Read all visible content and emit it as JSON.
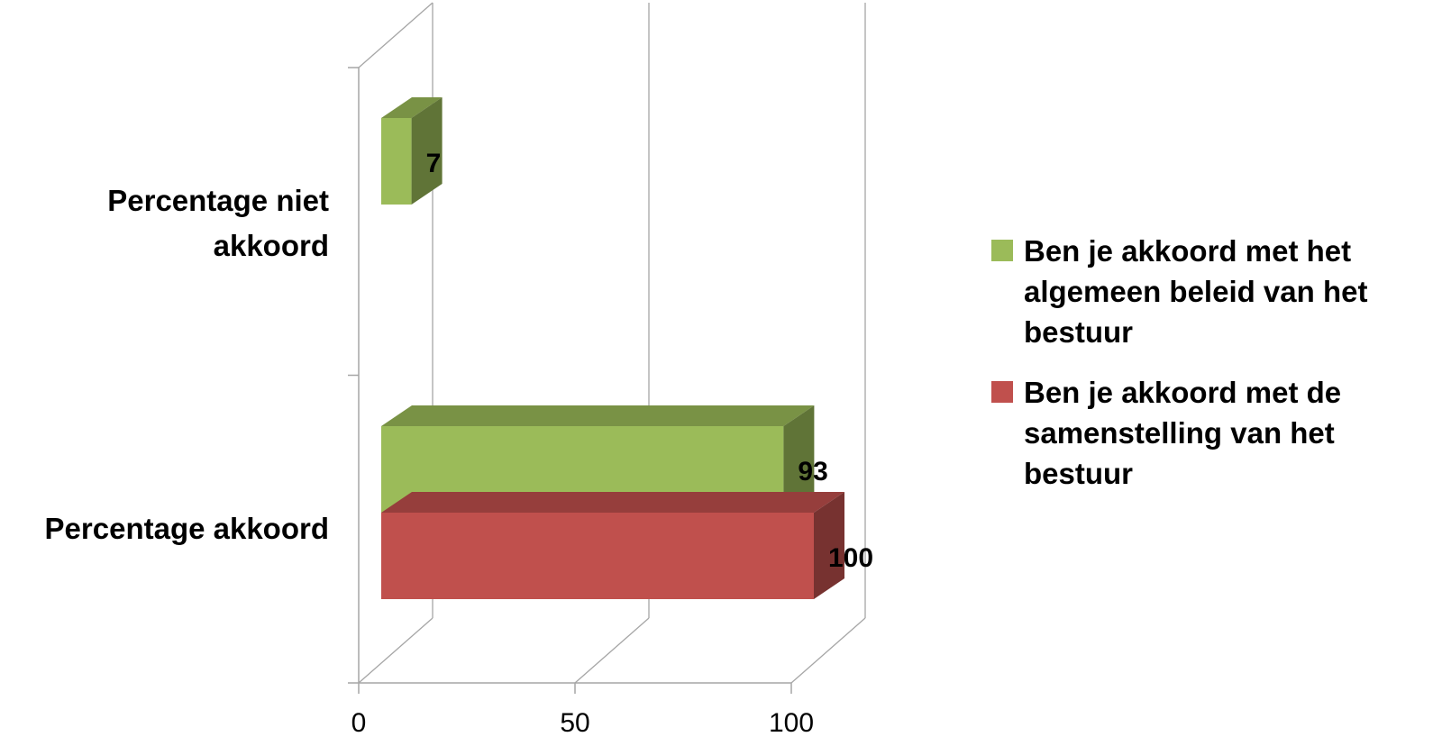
{
  "chart_data": {
    "type": "bar",
    "orientation": "horizontal",
    "three_d": true,
    "categories": [
      "Percentage niet akkoord",
      "Percentage akkoord"
    ],
    "series": [
      {
        "name": "Ben je akkoord met het algemeen beleid van het bestuur",
        "color": "#9BBB59",
        "values": [
          7,
          93
        ]
      },
      {
        "name": "Ben je akkoord met de samenstelling van het bestuur",
        "color": "#C0504D",
        "values": [
          null,
          100
        ]
      }
    ],
    "data_labels": [
      "7",
      "93",
      "100"
    ],
    "xlim": [
      0,
      100
    ],
    "xticks": [
      "0",
      "50",
      "100"
    ],
    "grid": true,
    "legend_position": "right",
    "title": "",
    "xlabel": "",
    "ylabel": ""
  },
  "labels": {
    "category_0_line1": "Percentage niet",
    "category_0_line2": "akkoord",
    "category_1": "Percentage akkoord"
  },
  "legend": [
    {
      "label": "Ben je akkoord met het algemeen beleid van het bestuur",
      "color": "#9BBB59"
    },
    {
      "label": "Ben je akkoord met de samenstelling van het bestuur",
      "color": "#C0504D"
    }
  ]
}
